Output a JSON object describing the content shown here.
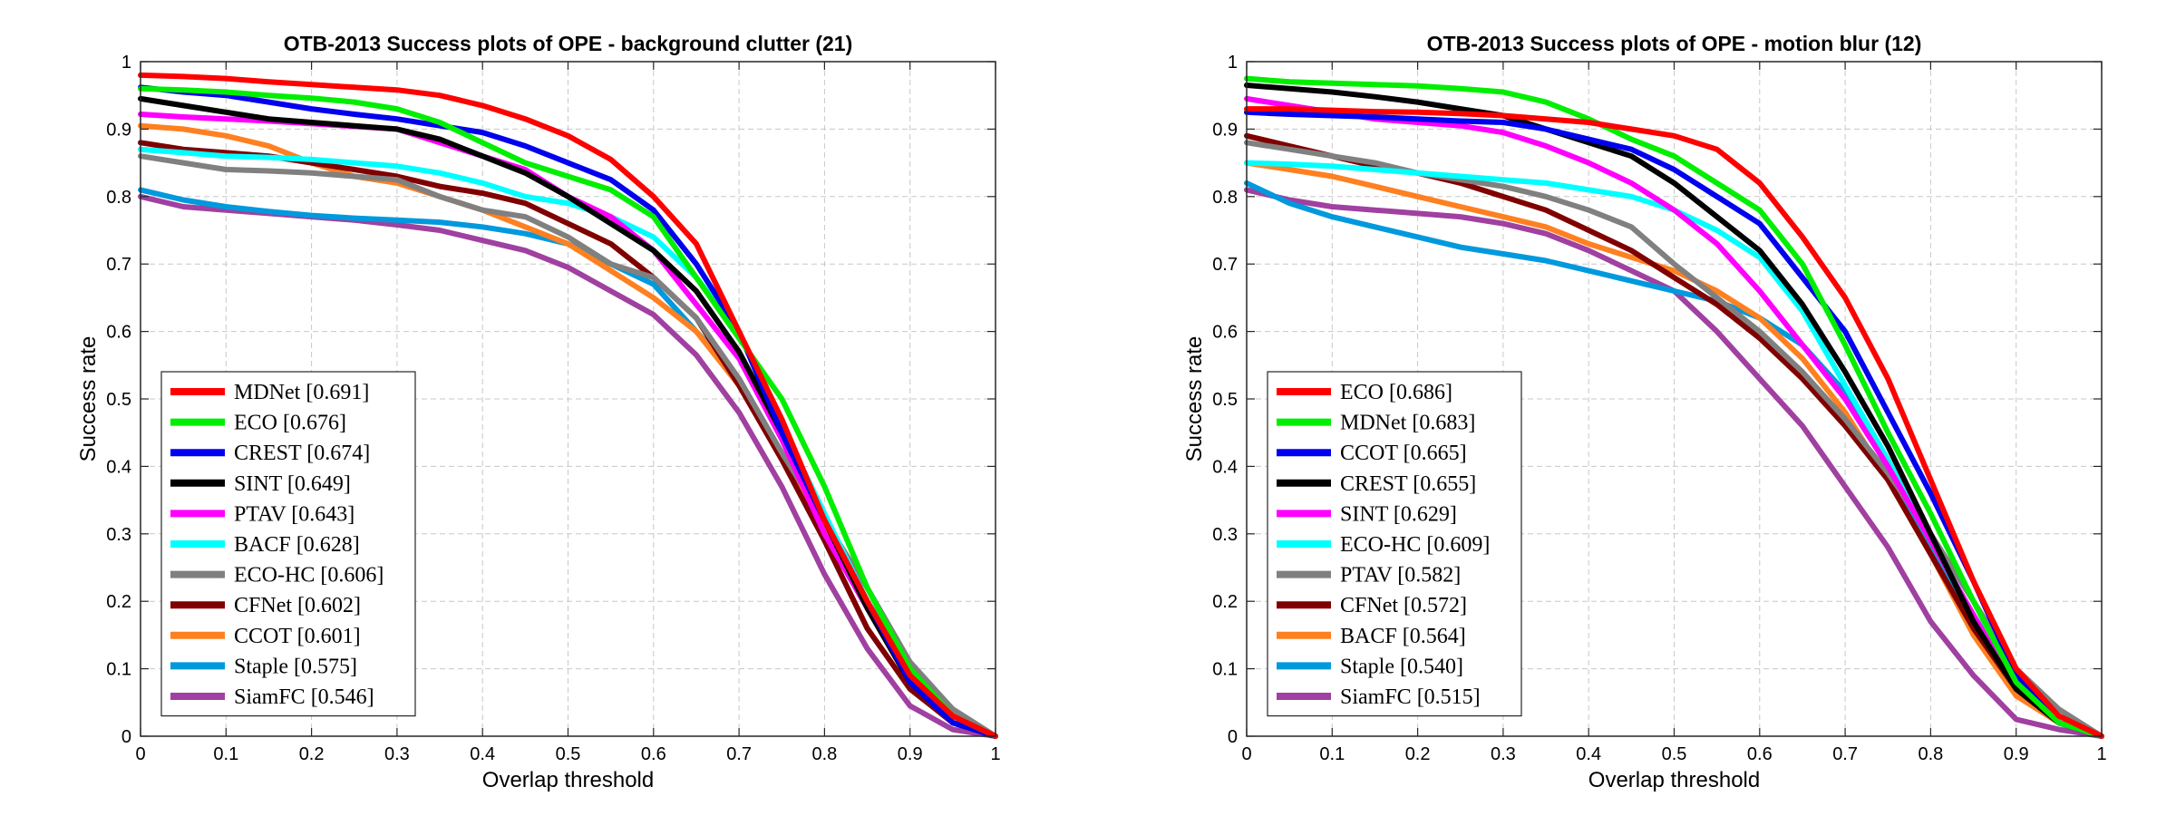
{
  "chart_data": [
    {
      "type": "line",
      "title": "OTB-2013  Success plots of OPE - background clutter (21)",
      "xlabel": "Overlap threshold",
      "ylabel": "Success rate",
      "xlim": [
        0,
        1
      ],
      "ylim": [
        0,
        1
      ],
      "grid": true,
      "legend_position": "bottom-left",
      "x_ticks": [
        "0",
        "0.1",
        "0.2",
        "0.3",
        "0.4",
        "0.5",
        "0.6",
        "0.7",
        "0.8",
        "0.9",
        "1"
      ],
      "y_ticks": [
        "0",
        "0.1",
        "0.2",
        "0.3",
        "0.4",
        "0.5",
        "0.6",
        "0.7",
        "0.8",
        "0.9",
        "1"
      ],
      "x": [
        0,
        0.05,
        0.1,
        0.15,
        0.2,
        0.25,
        0.3,
        0.35,
        0.4,
        0.45,
        0.5,
        0.55,
        0.6,
        0.65,
        0.7,
        0.75,
        0.8,
        0.85,
        0.9,
        0.95,
        1
      ],
      "series": [
        {
          "name": "MDNet",
          "label": "MDNet [0.691]",
          "color": "#ff0000",
          "values": [
            0.98,
            0.978,
            0.975,
            0.97,
            0.966,
            0.962,
            0.958,
            0.95,
            0.935,
            0.915,
            0.89,
            0.855,
            0.8,
            0.73,
            0.6,
            0.47,
            0.32,
            0.2,
            0.09,
            0.03,
            0.0
          ]
        },
        {
          "name": "ECO",
          "label": "ECO [0.676]",
          "color": "#00ee00",
          "values": [
            0.96,
            0.958,
            0.955,
            0.95,
            0.946,
            0.94,
            0.93,
            0.91,
            0.88,
            0.85,
            0.83,
            0.81,
            0.77,
            0.68,
            0.59,
            0.5,
            0.37,
            0.22,
            0.1,
            0.03,
            0.0
          ]
        },
        {
          "name": "CREST",
          "label": "CREST [0.674]",
          "color": "#0000ee",
          "values": [
            0.962,
            0.955,
            0.95,
            0.94,
            0.93,
            0.922,
            0.915,
            0.905,
            0.895,
            0.875,
            0.85,
            0.825,
            0.78,
            0.7,
            0.6,
            0.45,
            0.32,
            0.2,
            0.08,
            0.02,
            0.0
          ]
        },
        {
          "name": "SINT",
          "label": "SINT [0.649]",
          "color": "#000000",
          "values": [
            0.945,
            0.935,
            0.925,
            0.915,
            0.91,
            0.905,
            0.9,
            0.885,
            0.86,
            0.835,
            0.8,
            0.76,
            0.72,
            0.66,
            0.57,
            0.45,
            0.32,
            0.19,
            0.08,
            0.02,
            0.0
          ]
        },
        {
          "name": "PTAV",
          "label": "PTAV [0.643]",
          "color": "#ff00ff",
          "values": [
            0.922,
            0.918,
            0.915,
            0.912,
            0.908,
            0.904,
            0.9,
            0.88,
            0.86,
            0.84,
            0.8,
            0.77,
            0.72,
            0.64,
            0.56,
            0.44,
            0.3,
            0.19,
            0.08,
            0.02,
            0.0
          ]
        },
        {
          "name": "BACF",
          "label": "BACF [0.628]",
          "color": "#00ffff",
          "values": [
            0.87,
            0.865,
            0.86,
            0.858,
            0.855,
            0.85,
            0.845,
            0.835,
            0.82,
            0.8,
            0.79,
            0.77,
            0.74,
            0.68,
            0.6,
            0.46,
            0.33,
            0.2,
            0.09,
            0.02,
            0.0
          ]
        },
        {
          "name": "ECO-HC",
          "label": "ECO-HC [0.606]",
          "color": "#808080",
          "values": [
            0.86,
            0.85,
            0.84,
            0.838,
            0.835,
            0.83,
            0.825,
            0.8,
            0.78,
            0.77,
            0.74,
            0.7,
            0.68,
            0.62,
            0.53,
            0.42,
            0.32,
            0.22,
            0.11,
            0.04,
            0.0
          ]
        },
        {
          "name": "CFNet",
          "label": "CFNet [0.602]",
          "color": "#800000",
          "values": [
            0.88,
            0.87,
            0.865,
            0.86,
            0.85,
            0.84,
            0.83,
            0.815,
            0.805,
            0.79,
            0.76,
            0.73,
            0.68,
            0.62,
            0.52,
            0.41,
            0.29,
            0.16,
            0.07,
            0.02,
            0.0
          ]
        },
        {
          "name": "CCOT",
          "label": "CCOT [0.601]",
          "color": "#ff8020",
          "values": [
            0.905,
            0.9,
            0.89,
            0.875,
            0.85,
            0.83,
            0.82,
            0.8,
            0.78,
            0.755,
            0.73,
            0.69,
            0.65,
            0.6,
            0.52,
            0.42,
            0.31,
            0.2,
            0.09,
            0.03,
            0.0
          ]
        },
        {
          "name": "Staple",
          "label": "Staple [0.575]",
          "color": "#0099dd",
          "values": [
            0.81,
            0.795,
            0.785,
            0.778,
            0.772,
            0.768,
            0.765,
            0.762,
            0.755,
            0.745,
            0.73,
            0.7,
            0.67,
            0.6,
            0.53,
            0.42,
            0.31,
            0.2,
            0.1,
            0.04,
            0.0
          ]
        },
        {
          "name": "SiamFC",
          "label": "SiamFC [0.546]",
          "color": "#a040a0",
          "values": [
            0.8,
            0.785,
            0.78,
            0.775,
            0.77,
            0.765,
            0.758,
            0.75,
            0.735,
            0.72,
            0.695,
            0.66,
            0.625,
            0.565,
            0.48,
            0.37,
            0.24,
            0.13,
            0.045,
            0.01,
            0.0
          ]
        }
      ]
    },
    {
      "type": "line",
      "title": "OTB-2013  Success plots of OPE - motion blur (12)",
      "xlabel": "Overlap threshold",
      "ylabel": "Success rate",
      "xlim": [
        0,
        1
      ],
      "ylim": [
        0,
        1
      ],
      "grid": true,
      "legend_position": "bottom-left",
      "x_ticks": [
        "0",
        "0.1",
        "0.2",
        "0.3",
        "0.4",
        "0.5",
        "0.6",
        "0.7",
        "0.8",
        "0.9",
        "1"
      ],
      "y_ticks": [
        "0",
        "0.1",
        "0.2",
        "0.3",
        "0.4",
        "0.5",
        "0.6",
        "0.7",
        "0.8",
        "0.9",
        "1"
      ],
      "x": [
        0,
        0.05,
        0.1,
        0.15,
        0.2,
        0.25,
        0.3,
        0.35,
        0.4,
        0.45,
        0.5,
        0.55,
        0.6,
        0.65,
        0.7,
        0.75,
        0.8,
        0.85,
        0.9,
        0.95,
        1
      ],
      "series": [
        {
          "name": "ECO",
          "label": "ECO [0.686]",
          "color": "#ff0000",
          "values": [
            0.93,
            0.93,
            0.928,
            0.926,
            0.925,
            0.923,
            0.92,
            0.915,
            0.91,
            0.9,
            0.89,
            0.87,
            0.82,
            0.74,
            0.65,
            0.53,
            0.38,
            0.23,
            0.1,
            0.03,
            0.0
          ]
        },
        {
          "name": "MDNet",
          "label": "MDNet [0.683]",
          "color": "#00ee00",
          "values": [
            0.975,
            0.97,
            0.968,
            0.966,
            0.964,
            0.96,
            0.955,
            0.94,
            0.915,
            0.885,
            0.86,
            0.82,
            0.78,
            0.7,
            0.58,
            0.45,
            0.33,
            0.2,
            0.08,
            0.02,
            0.0
          ]
        },
        {
          "name": "CCOT",
          "label": "CCOT [0.665]",
          "color": "#0000ee",
          "values": [
            0.925,
            0.922,
            0.92,
            0.918,
            0.915,
            0.912,
            0.91,
            0.9,
            0.885,
            0.87,
            0.84,
            0.8,
            0.76,
            0.68,
            0.6,
            0.48,
            0.36,
            0.23,
            0.09,
            0.02,
            0.0
          ]
        },
        {
          "name": "CREST",
          "label": "CREST [0.655]",
          "color": "#000000",
          "values": [
            0.965,
            0.96,
            0.955,
            0.948,
            0.94,
            0.93,
            0.92,
            0.9,
            0.88,
            0.86,
            0.82,
            0.77,
            0.72,
            0.64,
            0.54,
            0.43,
            0.3,
            0.17,
            0.07,
            0.02,
            0.0
          ]
        },
        {
          "name": "SINT",
          "label": "SINT [0.629]",
          "color": "#ff00ff",
          "values": [
            0.945,
            0.935,
            0.925,
            0.915,
            0.91,
            0.905,
            0.895,
            0.875,
            0.85,
            0.82,
            0.78,
            0.73,
            0.66,
            0.58,
            0.5,
            0.4,
            0.29,
            0.18,
            0.07,
            0.02,
            0.0
          ]
        },
        {
          "name": "ECO-HC",
          "label": "ECO-HC [0.609]",
          "color": "#00ffff",
          "values": [
            0.85,
            0.848,
            0.845,
            0.84,
            0.835,
            0.83,
            0.825,
            0.82,
            0.81,
            0.8,
            0.78,
            0.75,
            0.71,
            0.63,
            0.52,
            0.41,
            0.29,
            0.18,
            0.08,
            0.02,
            0.0
          ]
        },
        {
          "name": "PTAV",
          "label": "PTAV [0.582]",
          "color": "#808080",
          "values": [
            0.88,
            0.87,
            0.86,
            0.85,
            0.835,
            0.825,
            0.815,
            0.8,
            0.78,
            0.755,
            0.7,
            0.65,
            0.6,
            0.54,
            0.47,
            0.39,
            0.3,
            0.2,
            0.1,
            0.04,
            0.0
          ]
        },
        {
          "name": "CFNet",
          "label": "CFNet [0.572]",
          "color": "#800000",
          "values": [
            0.89,
            0.875,
            0.86,
            0.845,
            0.835,
            0.82,
            0.8,
            0.78,
            0.75,
            0.72,
            0.68,
            0.64,
            0.59,
            0.53,
            0.46,
            0.38,
            0.27,
            0.16,
            0.07,
            0.02,
            0.0
          ]
        },
        {
          "name": "BACF",
          "label": "BACF [0.564]",
          "color": "#ff8020",
          "values": [
            0.85,
            0.84,
            0.83,
            0.815,
            0.8,
            0.785,
            0.77,
            0.755,
            0.73,
            0.71,
            0.69,
            0.66,
            0.62,
            0.56,
            0.48,
            0.38,
            0.27,
            0.15,
            0.06,
            0.02,
            0.0
          ]
        },
        {
          "name": "Staple",
          "label": "Staple [0.540]",
          "color": "#0099dd",
          "values": [
            0.82,
            0.79,
            0.77,
            0.755,
            0.74,
            0.725,
            0.715,
            0.705,
            0.69,
            0.675,
            0.66,
            0.645,
            0.62,
            0.58,
            0.51,
            0.4,
            0.28,
            0.17,
            0.08,
            0.02,
            0.0
          ]
        },
        {
          "name": "SiamFC",
          "label": "SiamFC [0.515]",
          "color": "#a040a0",
          "values": [
            0.81,
            0.795,
            0.785,
            0.78,
            0.775,
            0.77,
            0.76,
            0.745,
            0.72,
            0.69,
            0.66,
            0.6,
            0.53,
            0.46,
            0.37,
            0.28,
            0.17,
            0.09,
            0.025,
            0.01,
            0.0
          ]
        }
      ]
    }
  ]
}
